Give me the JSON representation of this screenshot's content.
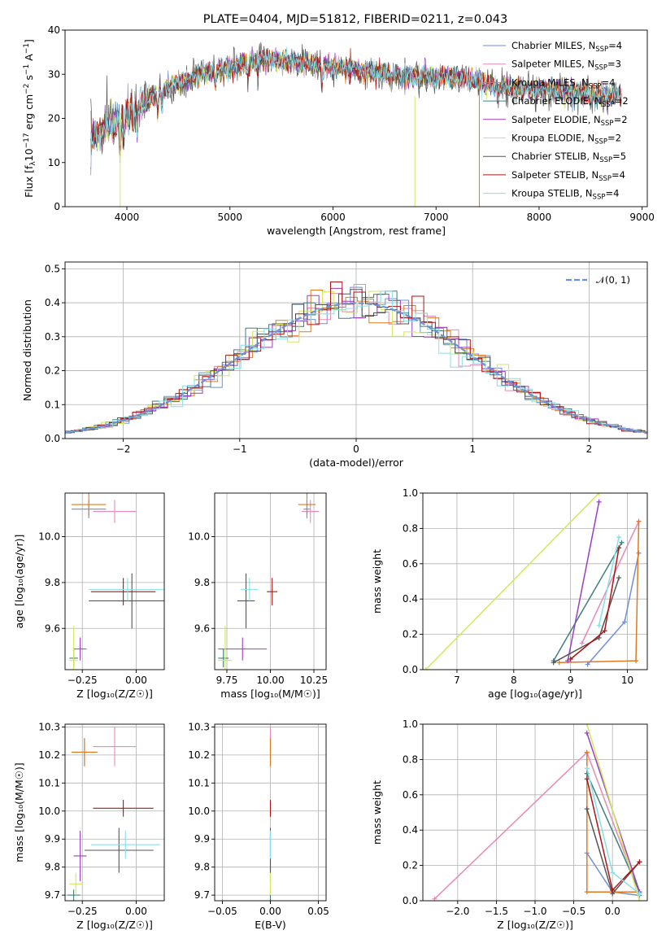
{
  "figure": {
    "title": "PLATE=0404, MJD=51812, FIBERID=0211, z=0.043"
  },
  "models": [
    {
      "name": "Chabrier MILES, N",
      "sub": "SSP",
      "suffix": "=4",
      "color": "#6f8fd8"
    },
    {
      "name": "Salpeter MILES, N",
      "sub": "SSP",
      "suffix": "=3",
      "color": "#e88ab8"
    },
    {
      "name": "Kroupa MILES, N",
      "sub": "SSP",
      "suffix": "=4",
      "color": "#e07a1f"
    },
    {
      "name": "Chabrier ELODIE, N",
      "sub": "SSP",
      "suffix": "=2",
      "color": "#3f7f7f"
    },
    {
      "name": "Salpeter ELODIE, N",
      "sub": "SSP",
      "suffix": "=2",
      "color": "#9a3fc0"
    },
    {
      "name": "Kroupa ELODIE, N",
      "sub": "SSP",
      "suffix": "=2",
      "color": "#d2e85a"
    },
    {
      "name": "Chabrier STELIB, N",
      "sub": "SSP",
      "suffix": "=5",
      "color": "#555555"
    },
    {
      "name": "Salpeter STELIB, N",
      "sub": "SSP",
      "suffix": "=4",
      "color": "#b01414"
    },
    {
      "name": "Kroupa STELIB, N",
      "sub": "SSP",
      "suffix": "=4",
      "color": "#86dfe8"
    }
  ],
  "chart_data": [
    {
      "id": "spectrum",
      "type": "line",
      "xlabel": "wavelength [Angstrom, rest frame]",
      "ylabel_parts": [
        "Flux [f",
        "λ",
        "10",
        "−17",
        " erg cm",
        "−2",
        " s",
        "−1",
        " A",
        "−1",
        "]"
      ],
      "xlim": [
        3400,
        9050
      ],
      "ylim": [
        0,
        40
      ],
      "xticks": [
        4000,
        5000,
        6000,
        7000,
        8000,
        9000
      ],
      "yticks": [
        0,
        10,
        20,
        30,
        40
      ],
      "grid": false,
      "legend": "top-right",
      "observed_range": [
        3650,
        8800
      ],
      "continuum_points": [
        [
          3650,
          15
        ],
        [
          3800,
          18
        ],
        [
          3950,
          20
        ],
        [
          4100,
          22
        ],
        [
          4300,
          26
        ],
        [
          4500,
          28
        ],
        [
          4700,
          30
        ],
        [
          5000,
          31.5
        ],
        [
          5300,
          33.5
        ],
        [
          5600,
          33
        ],
        [
          5900,
          32
        ],
        [
          6200,
          31
        ],
        [
          6500,
          30
        ],
        [
          6800,
          29.5
        ],
        [
          7100,
          29.5
        ],
        [
          7400,
          28.5
        ],
        [
          7700,
          27
        ],
        [
          8000,
          26.5
        ],
        [
          8300,
          26
        ],
        [
          8600,
          25.5
        ],
        [
          8800,
          25.5
        ]
      ],
      "absorption_features": [
        [
          3934,
          7
        ],
        [
          3969,
          6
        ],
        [
          4102,
          4
        ],
        [
          4300,
          5
        ],
        [
          4340,
          4
        ],
        [
          4861,
          3
        ],
        [
          5175,
          4
        ],
        [
          5270,
          2
        ],
        [
          5893,
          4
        ],
        [
          6563,
          2
        ],
        [
          7600,
          3
        ],
        [
          8500,
          2
        ],
        [
          8542,
          2
        ],
        [
          8662,
          2
        ]
      ],
      "drop_lines": [
        {
          "model": 5,
          "x": 3935,
          "ytop": 20
        },
        {
          "model": 5,
          "x": 6795,
          "ytop": 25
        },
        {
          "model": 2,
          "x": 7420,
          "ytop": 29
        }
      ]
    },
    {
      "id": "residuals",
      "type": "histogram",
      "xlabel": "(data-model)/error",
      "ylabel": "Normed distribution",
      "xlim": [
        -2.5,
        2.5
      ],
      "ylim": [
        0,
        0.52
      ],
      "xticks": [
        -2,
        -1,
        0,
        1,
        2
      ],
      "yticks": [
        0.0,
        0.1,
        0.2,
        0.3,
        0.4,
        0.5
      ],
      "grid": true,
      "legend": "top-right",
      "reference_curve": {
        "label": "𝒩(0, 1)",
        "mean": 0,
        "sigma": 1,
        "color": "#6f8fd8"
      },
      "bin_width": 0.1
    },
    {
      "id": "age-vs-Z",
      "type": "errorbar",
      "xlabel": "Z [log₁₀(Z/Z☉)]",
      "ylabel": "age  [log₁₀(age/yr)]",
      "xlim": [
        -0.33,
        0.13
      ],
      "ylim": [
        9.42,
        10.19
      ],
      "xticks": [
        -0.25,
        0.0
      ],
      "yticks": [
        9.6,
        9.8,
        10.0
      ],
      "grid": true,
      "points": [
        {
          "m": 0,
          "x": -0.22,
          "xerr": 0.08,
          "y": 10.12,
          "yerr": 0.04
        },
        {
          "m": 1,
          "x": -0.1,
          "xerr": 0.1,
          "y": 10.11,
          "yerr": 0.05
        },
        {
          "m": 2,
          "x": -0.22,
          "xerr": 0.08,
          "y": 10.14,
          "yerr": 0.05
        },
        {
          "m": 3,
          "x": -0.29,
          "xerr": 0.02,
          "y": 9.47,
          "yerr": 0.04
        },
        {
          "m": 4,
          "x": -0.26,
          "xerr": 0.03,
          "y": 9.51,
          "yerr": 0.05
        },
        {
          "m": 5,
          "x": -0.29,
          "xerr": 0.02,
          "y": 9.46,
          "yerr": 0.15
        },
        {
          "m": 6,
          "x": -0.02,
          "xerr": 0.2,
          "y": 9.72,
          "yerr": 0.12
        },
        {
          "m": 7,
          "x": -0.06,
          "xerr": 0.15,
          "y": 9.76,
          "yerr": 0.06
        },
        {
          "m": 8,
          "x": -0.04,
          "xerr": 0.18,
          "y": 9.77,
          "yerr": 0.05
        }
      ]
    },
    {
      "id": "age-vs-mass",
      "type": "errorbar",
      "xlabel": "mass [log₁₀(M/M☉)]",
      "ylabel": "",
      "xlim": [
        9.68,
        10.32
      ],
      "ylim": [
        9.42,
        10.19
      ],
      "xticks": [
        9.75,
        10.0,
        10.25
      ],
      "yticks": [
        9.6,
        9.8,
        10.0
      ],
      "grid": true,
      "points": [
        {
          "m": 0,
          "x": 10.21,
          "xerr": 0.02,
          "y": 10.12,
          "yerr": 0.04
        },
        {
          "m": 1,
          "x": 10.23,
          "xerr": 0.05,
          "y": 10.11,
          "yerr": 0.05
        },
        {
          "m": 2,
          "x": 10.21,
          "xerr": 0.05,
          "y": 10.14,
          "yerr": 0.05
        },
        {
          "m": 3,
          "x": 9.73,
          "xerr": 0.03,
          "y": 9.47,
          "yerr": 0.04
        },
        {
          "m": 4,
          "x": 9.84,
          "xerr": 0.14,
          "y": 9.51,
          "yerr": 0.05
        },
        {
          "m": 5,
          "x": 9.74,
          "xerr": 0.04,
          "y": 9.46,
          "yerr": 0.15
        },
        {
          "m": 6,
          "x": 9.86,
          "xerr": 0.05,
          "y": 9.72,
          "yerr": 0.12
        },
        {
          "m": 7,
          "x": 10.01,
          "xerr": 0.03,
          "y": 9.76,
          "yerr": 0.06
        },
        {
          "m": 8,
          "x": 9.88,
          "xerr": 0.05,
          "y": 9.77,
          "yerr": 0.05
        }
      ]
    },
    {
      "id": "massweight-vs-age",
      "type": "line",
      "xlabel": "age  [log₁₀(age/yr)]",
      "ylabel": "mass weight",
      "xlim": [
        6.4,
        10.35
      ],
      "ylim": [
        0,
        1
      ],
      "xticks": [
        7,
        8,
        9,
        10
      ],
      "yticks": [
        0.0,
        0.2,
        0.4,
        0.6,
        0.8,
        1.0
      ],
      "grid": true,
      "series": [
        {
          "m": 0,
          "points": [
            [
              9.3,
              0.03
            ],
            [
              9.95,
              0.27
            ],
            [
              10.2,
              0.66
            ]
          ]
        },
        {
          "m": 1,
          "points": [
            [
              9.2,
              0.15
            ],
            [
              10.2,
              0.84
            ]
          ]
        },
        {
          "m": 2,
          "points": [
            [
              8.8,
              0.04
            ],
            [
              10.15,
              0.05
            ],
            [
              10.2,
              0.84
            ]
          ]
        },
        {
          "m": 3,
          "points": [
            [
              8.7,
              0.05
            ],
            [
              9.9,
              0.72
            ]
          ]
        },
        {
          "m": 4,
          "points": [
            [
              8.95,
              0.05
            ],
            [
              9.5,
              0.95
            ]
          ]
        },
        {
          "m": 5,
          "points": [
            [
              6.45,
              0.0
            ],
            [
              9.5,
              1.0
            ]
          ]
        },
        {
          "m": 6,
          "points": [
            [
              8.7,
              0.04
            ],
            [
              9.5,
              0.18
            ],
            [
              9.85,
              0.52
            ]
          ]
        },
        {
          "m": 7,
          "points": [
            [
              9.0,
              0.06
            ],
            [
              9.6,
              0.22
            ],
            [
              9.85,
              0.69
            ]
          ]
        },
        {
          "m": 8,
          "points": [
            [
              9.5,
              0.25
            ],
            [
              9.85,
              0.75
            ]
          ]
        }
      ]
    },
    {
      "id": "mass-vs-Z",
      "type": "errorbar",
      "xlabel": "Z [log₁₀(Z/Z☉)]",
      "ylabel": "mass [log₁₀(M/M☉)]",
      "xlim": [
        -0.33,
        0.13
      ],
      "ylim": [
        9.68,
        10.31
      ],
      "xticks": [
        -0.25,
        0.0
      ],
      "yticks": [
        9.7,
        9.8,
        9.9,
        10.0,
        10.1,
        10.2,
        10.3
      ],
      "grid": true,
      "points": [
        {
          "m": 0,
          "x": -0.24,
          "xerr": 0.06,
          "y": 10.21,
          "yerr": 0.05
        },
        {
          "m": 1,
          "x": -0.1,
          "xerr": 0.1,
          "y": 10.23,
          "yerr": 0.07
        },
        {
          "m": 2,
          "x": -0.24,
          "xerr": 0.06,
          "y": 10.21,
          "yerr": 0.05
        },
        {
          "m": 3,
          "x": -0.29,
          "xerr": 0.03,
          "y": 9.7,
          "yerr": 0.02
        },
        {
          "m": 4,
          "x": -0.26,
          "xerr": 0.03,
          "y": 9.84,
          "yerr": 0.09
        },
        {
          "m": 5,
          "x": -0.28,
          "xerr": 0.03,
          "y": 9.74,
          "yerr": 0.04
        },
        {
          "m": 6,
          "x": -0.08,
          "xerr": 0.16,
          "y": 9.86,
          "yerr": 0.08
        },
        {
          "m": 7,
          "x": -0.06,
          "xerr": 0.14,
          "y": 10.01,
          "yerr": 0.03
        },
        {
          "m": 8,
          "x": -0.05,
          "xerr": 0.16,
          "y": 9.88,
          "yerr": 0.05
        }
      ]
    },
    {
      "id": "mass-vs-EBV",
      "type": "errorbar",
      "xlabel": "E(B-V)",
      "ylabel": "",
      "xlim": [
        -0.058,
        0.058
      ],
      "ylim": [
        9.68,
        10.31
      ],
      "xticks": [
        -0.05,
        0.0,
        0.05
      ],
      "yticks": [
        9.7,
        9.8,
        9.9,
        10.0,
        10.1,
        10.2,
        10.3
      ],
      "grid": true,
      "points": [
        {
          "m": 0,
          "x": 0,
          "xerr": 0,
          "y": 10.21,
          "yerr": 0.05
        },
        {
          "m": 1,
          "x": 0,
          "xerr": 0,
          "y": 10.23,
          "yerr": 0.07
        },
        {
          "m": 2,
          "x": 0,
          "xerr": 0,
          "y": 10.21,
          "yerr": 0.05
        },
        {
          "m": 3,
          "x": 0,
          "xerr": 0,
          "y": 9.7,
          "yerr": 0.02
        },
        {
          "m": 4,
          "x": 0,
          "xerr": 0,
          "y": 9.84,
          "yerr": 0.09
        },
        {
          "m": 5,
          "x": 0,
          "xerr": 0,
          "y": 9.74,
          "yerr": 0.04
        },
        {
          "m": 6,
          "x": 0,
          "xerr": 0,
          "y": 9.86,
          "yerr": 0.08
        },
        {
          "m": 7,
          "x": 0,
          "xerr": 0,
          "y": 10.01,
          "yerr": 0.03
        },
        {
          "m": 8,
          "x": 0,
          "xerr": 0,
          "y": 9.88,
          "yerr": 0.05
        }
      ]
    },
    {
      "id": "massweight-vs-Z",
      "type": "line",
      "xlabel": "Z [log₁₀(Z/Z☉)]",
      "ylabel": "mass weight",
      "xlim": [
        -2.45,
        0.45
      ],
      "ylim": [
        0,
        1
      ],
      "xticks": [
        -2.0,
        -1.5,
        -1.0,
        -0.5,
        0.0
      ],
      "yticks": [
        0.0,
        0.2,
        0.4,
        0.6,
        0.8,
        1.0
      ],
      "grid": true,
      "series": [
        {
          "m": 0,
          "points": [
            [
              -0.33,
              0.27
            ],
            [
              0.0,
              0.05
            ],
            [
              0.35,
              0.03
            ]
          ]
        },
        {
          "m": 1,
          "points": [
            [
              -2.3,
              0.01
            ],
            [
              -0.33,
              0.84
            ],
            [
              0.35,
              0.04
            ]
          ]
        },
        {
          "m": 2,
          "points": [
            [
              -0.33,
              0.84
            ],
            [
              -0.33,
              0.05
            ],
            [
              0.35,
              0.05
            ]
          ]
        },
        {
          "m": 3,
          "points": [
            [
              -0.33,
              0.72
            ],
            [
              0.35,
              0.05
            ]
          ]
        },
        {
          "m": 4,
          "points": [
            [
              -0.33,
              0.95
            ],
            [
              0.35,
              0.05
            ]
          ]
        },
        {
          "m": 5,
          "points": [
            [
              -0.33,
              1.0
            ],
            [
              0.35,
              0.0
            ]
          ]
        },
        {
          "m": 6,
          "points": [
            [
              -0.33,
              0.52
            ],
            [
              0.0,
              0.04
            ],
            [
              0.35,
              0.22
            ]
          ]
        },
        {
          "m": 7,
          "points": [
            [
              -0.33,
              0.69
            ],
            [
              0.0,
              0.06
            ],
            [
              0.35,
              0.22
            ]
          ]
        },
        {
          "m": 8,
          "points": [
            [
              -0.33,
              0.75
            ],
            [
              0.0,
              0.16
            ],
            [
              0.35,
              0.04
            ]
          ]
        }
      ]
    }
  ]
}
